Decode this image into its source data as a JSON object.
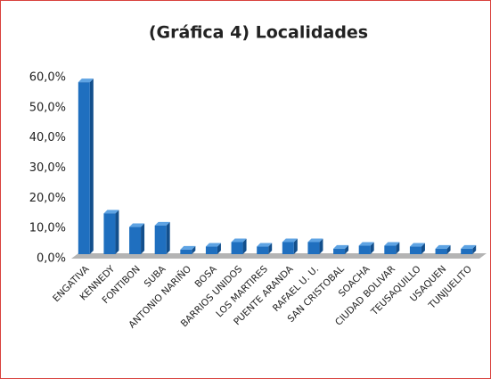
{
  "chart_data": {
    "type": "bar",
    "title": "(Gráfica 4) Localidades",
    "categories": [
      "ENGATIVA",
      "KENNEDY",
      "FONTIBON",
      "SUBA",
      "ANTONIO NARIÑO",
      "BOSA",
      "BARRIOS UNIDOS",
      "LOS MARTIRES",
      "PUENTE ARANDA",
      "RAFAEL U. U.",
      "SAN CRISTOBAL",
      "SOACHA",
      "CIUDAD BOLIVAR",
      "TEUSAQUILLO",
      "USAQUEN",
      "TUNJUELITO"
    ],
    "values": [
      57,
      13.5,
      9,
      9.5,
      1.5,
      2.5,
      4,
      2.5,
      4,
      4,
      1.8,
      2.8,
      2.8,
      2.5,
      1.8,
      1.8
    ],
    "color": "#1f6fbf",
    "ylim": [
      0,
      60
    ],
    "yticks": [
      {
        "value": 0,
        "label": "0,0%"
      },
      {
        "value": 10,
        "label": "10,0%"
      },
      {
        "value": 20,
        "label": "20,0%"
      },
      {
        "value": 30,
        "label": "30,0%"
      },
      {
        "value": 40,
        "label": "40,0%"
      },
      {
        "value": 50,
        "label": "50,0%"
      },
      {
        "value": 60,
        "label": "60,0%"
      }
    ],
    "grid": false
  }
}
